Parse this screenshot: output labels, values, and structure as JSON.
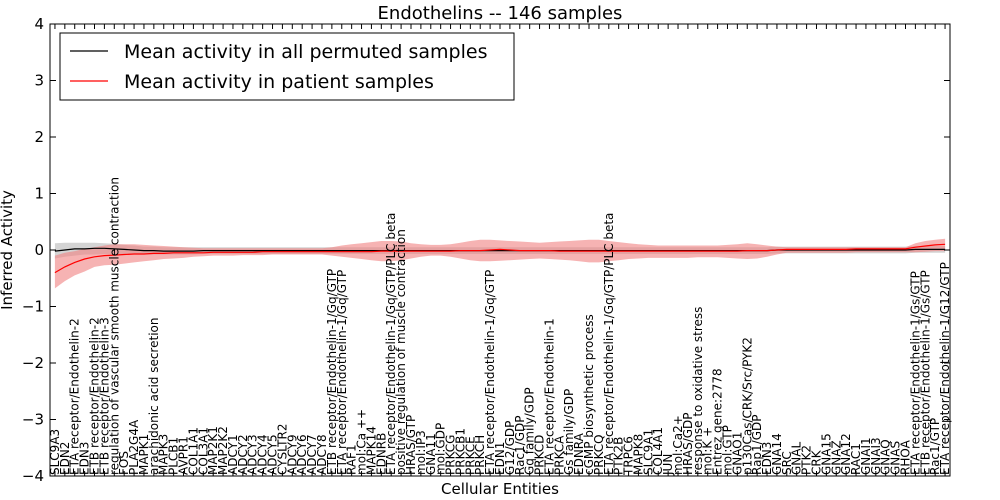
{
  "chart_data": {
    "type": "line",
    "title": "Endothelins -- 146 samples",
    "xlabel": "Cellular Entities",
    "ylabel": "Inferred Activity",
    "ylim": [
      -4,
      4
    ],
    "yticks": [
      -4,
      -3,
      -2,
      -1,
      0,
      1,
      2,
      3,
      4
    ],
    "grid": false,
    "legend_position": "top-left",
    "categories": [
      "SLC9A3",
      "EDN2",
      "ETA receptor/Endothelin-2",
      "EDN3",
      "ETB receptor/Endothelin-2",
      "ETB receptor/Endothelin-3",
      "regulation of vascular smooth muscle contraction",
      "FOS",
      "PLA2G4A",
      "MAPK1",
      "arachidonic acid secretion",
      "MAPK3",
      "PLCB1",
      "AVPR1",
      "COL1A1",
      "COL3A1",
      "MAP2K1",
      "MAP2K2",
      "ADCY1",
      "ADCY2",
      "ADCY3",
      "ADCY4",
      "ADCY5",
      "CYSLTR2",
      "ADCY9",
      "ADCY6",
      "ADCY7",
      "ADCY8",
      "ETB receptor/Endothelin-1/Gq/GTP",
      "ETA receptor/Endothelin-1/Gq/GTP",
      "RAF1",
      "mol:Ca ++",
      "MAPK14",
      "EDNRB",
      "ETA receptor/Endothelin-1/Gq/GTP/PLC beta",
      "positive regulation of muscle contraction",
      "HRAS/GTP",
      "mol:IP3",
      "GNA11",
      "mol:GDP",
      "PRKCG",
      "PRKCB1",
      "PRKCE",
      "PRKCH",
      "ETA receptor/Endothelin-1/Gq/GTP",
      "EDN1",
      "G12/GDP",
      "Rac1/GDP",
      "Gq family/GDP",
      "PRKCD",
      "ETA receptor/Endothelin-1",
      "PRKCA",
      "Gs family/GDP",
      "EDNRA",
      "cGMP biosynthetic process",
      "PRKCQ",
      "ETA receptor/Endothelin-1/Gq/GTP/PLC beta",
      "PTK2B",
      "TRPC6",
      "MAPK8",
      "SLC9A1",
      "COL4A1",
      "JUN",
      "mol:Ca2+",
      "HRAS/GDP",
      "response to oxidative stress",
      "mol:K +",
      "Entrez gene:2778",
      "mol:GTP",
      "GNAO1",
      "p130Cas/CRK/Src/PYK2",
      "Rap1/GDP",
      "EDN3",
      "GNA14",
      "SRC",
      "GNAL",
      "PTK2",
      "CRK",
      "GNA15",
      "GNAZ",
      "GNA12",
      "RAC1",
      "GNAI1",
      "GNAI3",
      "GNAQ",
      "GNAS",
      "RHOA",
      "ETA receptor/Endothelin-1/Gs/GTP",
      "ETB receptor/Endothelin-1/Gs/GTP",
      "Rac1/GTP",
      "ETA receptor/Endothelin-1/G12/GTP"
    ],
    "series": [
      {
        "name": "Mean activity in all permuted samples",
        "color": "#000000",
        "values": [
          -0.02,
          0.0,
          0.02,
          0.02,
          0.03,
          0.03,
          0.02,
          0.01,
          0.0,
          -0.01,
          -0.01,
          -0.02,
          -0.02,
          -0.02,
          -0.02,
          -0.01,
          -0.01,
          -0.01,
          -0.01,
          -0.01,
          -0.01,
          -0.01,
          -0.01,
          -0.01,
          -0.01,
          -0.01,
          -0.01,
          -0.01,
          -0.01,
          -0.01,
          -0.01,
          -0.01,
          -0.01,
          -0.01,
          -0.01,
          -0.01,
          -0.01,
          -0.01,
          -0.01,
          -0.01,
          -0.01,
          -0.01,
          -0.01,
          -0.01,
          -0.01,
          -0.01,
          -0.01,
          -0.01,
          -0.01,
          -0.01,
          -0.01,
          -0.01,
          -0.01,
          -0.01,
          -0.01,
          -0.01,
          -0.01,
          -0.01,
          -0.01,
          -0.01,
          -0.01,
          -0.01,
          -0.01,
          -0.01,
          -0.01,
          -0.01,
          -0.01,
          -0.01,
          -0.01,
          -0.01,
          -0.01,
          -0.01,
          -0.01,
          0.0,
          0.0,
          0.0,
          0.0,
          0.0,
          0.0,
          0.0,
          0.0,
          0.0,
          0.0,
          0.0,
          0.0,
          0.0,
          0.0,
          0.01,
          0.01,
          0.01,
          0.01
        ],
        "band_lower": [
          -0.15,
          -0.12,
          -0.1,
          -0.08,
          -0.08,
          -0.07,
          -0.07,
          -0.07,
          -0.08,
          -0.08,
          -0.08,
          -0.08,
          -0.08,
          -0.08,
          -0.08,
          -0.07,
          -0.07,
          -0.07,
          -0.07,
          -0.07,
          -0.07,
          -0.07,
          -0.07,
          -0.07,
          -0.07,
          -0.07,
          -0.07,
          -0.07,
          -0.07,
          -0.07,
          -0.07,
          -0.07,
          -0.07,
          -0.07,
          -0.07,
          -0.07,
          -0.07,
          -0.07,
          -0.07,
          -0.07,
          -0.07,
          -0.07,
          -0.07,
          -0.07,
          -0.07,
          -0.07,
          -0.07,
          -0.07,
          -0.07,
          -0.07,
          -0.07,
          -0.07,
          -0.07,
          -0.07,
          -0.07,
          -0.07,
          -0.07,
          -0.07,
          -0.07,
          -0.07,
          -0.07,
          -0.07,
          -0.07,
          -0.07,
          -0.07,
          -0.07,
          -0.07,
          -0.07,
          -0.07,
          -0.07,
          -0.07,
          -0.07,
          -0.07,
          -0.06,
          -0.06,
          -0.06,
          -0.06,
          -0.06,
          -0.06,
          -0.06,
          -0.06,
          -0.06,
          -0.06,
          -0.06,
          -0.06,
          -0.06,
          -0.06,
          -0.05,
          -0.05,
          -0.05,
          -0.05
        ],
        "band_upper": [
          0.12,
          0.13,
          0.13,
          0.13,
          0.13,
          0.12,
          0.11,
          0.09,
          0.08,
          0.06,
          0.06,
          0.05,
          0.05,
          0.05,
          0.05,
          0.05,
          0.05,
          0.05,
          0.05,
          0.05,
          0.05,
          0.05,
          0.05,
          0.05,
          0.05,
          0.05,
          0.05,
          0.05,
          0.05,
          0.05,
          0.05,
          0.05,
          0.05,
          0.05,
          0.05,
          0.05,
          0.05,
          0.05,
          0.05,
          0.05,
          0.05,
          0.05,
          0.05,
          0.05,
          0.05,
          0.05,
          0.05,
          0.05,
          0.05,
          0.05,
          0.05,
          0.05,
          0.05,
          0.05,
          0.05,
          0.05,
          0.05,
          0.05,
          0.05,
          0.05,
          0.05,
          0.05,
          0.05,
          0.05,
          0.05,
          0.05,
          0.05,
          0.05,
          0.05,
          0.05,
          0.05,
          0.05,
          0.05,
          0.06,
          0.06,
          0.06,
          0.06,
          0.06,
          0.06,
          0.06,
          0.06,
          0.06,
          0.06,
          0.06,
          0.06,
          0.06,
          0.06,
          0.07,
          0.07,
          0.07,
          0.07
        ]
      },
      {
        "name": "Mean activity in patient samples",
        "color": "#ff0000",
        "values": [
          -0.4,
          -0.3,
          -0.22,
          -0.16,
          -0.12,
          -0.1,
          -0.09,
          -0.08,
          -0.07,
          -0.07,
          -0.06,
          -0.06,
          -0.05,
          -0.05,
          -0.05,
          -0.05,
          -0.04,
          -0.04,
          -0.04,
          -0.04,
          -0.04,
          -0.03,
          -0.03,
          -0.03,
          -0.03,
          -0.03,
          -0.03,
          -0.03,
          -0.03,
          -0.03,
          -0.03,
          -0.03,
          -0.03,
          -0.02,
          -0.02,
          -0.02,
          -0.02,
          -0.02,
          -0.02,
          -0.02,
          -0.02,
          -0.01,
          -0.01,
          -0.01,
          0.0,
          0.01,
          0.0,
          -0.01,
          -0.01,
          -0.01,
          -0.01,
          -0.02,
          -0.02,
          -0.02,
          -0.02,
          -0.02,
          -0.02,
          -0.02,
          -0.02,
          -0.02,
          -0.02,
          -0.02,
          -0.02,
          -0.02,
          -0.02,
          -0.02,
          -0.02,
          -0.02,
          -0.02,
          -0.02,
          -0.01,
          -0.01,
          -0.01,
          0.0,
          0.01,
          0.01,
          0.01,
          0.01,
          0.01,
          0.01,
          0.01,
          0.02,
          0.02,
          0.02,
          0.02,
          0.02,
          0.02,
          0.05,
          0.07,
          0.09,
          0.1
        ],
        "band_lower": [
          -0.68,
          -0.55,
          -0.45,
          -0.38,
          -0.3,
          -0.27,
          -0.26,
          -0.24,
          -0.22,
          -0.2,
          -0.18,
          -0.16,
          -0.15,
          -0.14,
          -0.12,
          -0.11,
          -0.1,
          -0.1,
          -0.1,
          -0.09,
          -0.09,
          -0.09,
          -0.08,
          -0.08,
          -0.08,
          -0.08,
          -0.08,
          -0.08,
          -0.1,
          -0.12,
          -0.14,
          -0.16,
          -0.18,
          -0.2,
          -0.2,
          -0.18,
          -0.15,
          -0.12,
          -0.1,
          -0.1,
          -0.12,
          -0.15,
          -0.18,
          -0.2,
          -0.2,
          -0.19,
          -0.18,
          -0.17,
          -0.16,
          -0.15,
          -0.16,
          -0.17,
          -0.18,
          -0.2,
          -0.22,
          -0.22,
          -0.2,
          -0.18,
          -0.16,
          -0.15,
          -0.14,
          -0.14,
          -0.14,
          -0.14,
          -0.14,
          -0.13,
          -0.13,
          -0.13,
          -0.14,
          -0.15,
          -0.16,
          -0.15,
          -0.12,
          -0.08,
          -0.05,
          -0.05,
          -0.05,
          -0.05,
          -0.05,
          -0.05,
          -0.05,
          -0.04,
          -0.04,
          -0.04,
          -0.04,
          -0.04,
          -0.04,
          -0.04,
          -0.03,
          -0.02,
          -0.02
        ],
        "band_upper": [
          -0.1,
          -0.05,
          -0.02,
          0.02,
          0.05,
          0.08,
          0.1,
          0.1,
          0.1,
          0.09,
          0.08,
          0.07,
          0.06,
          0.05,
          0.04,
          0.03,
          0.03,
          0.03,
          0.03,
          0.03,
          0.03,
          0.03,
          0.03,
          0.03,
          0.03,
          0.03,
          0.03,
          0.03,
          0.05,
          0.08,
          0.1,
          0.12,
          0.14,
          0.16,
          0.16,
          0.15,
          0.12,
          0.1,
          0.09,
          0.09,
          0.1,
          0.13,
          0.16,
          0.18,
          0.18,
          0.17,
          0.16,
          0.15,
          0.14,
          0.13,
          0.14,
          0.15,
          0.16,
          0.17,
          0.18,
          0.18,
          0.16,
          0.14,
          0.12,
          0.1,
          0.09,
          0.08,
          0.08,
          0.08,
          0.08,
          0.08,
          0.08,
          0.08,
          0.09,
          0.1,
          0.12,
          0.1,
          0.08,
          0.06,
          0.05,
          0.05,
          0.05,
          0.05,
          0.05,
          0.05,
          0.05,
          0.05,
          0.05,
          0.05,
          0.05,
          0.05,
          0.05,
          0.12,
          0.16,
          0.18,
          0.2
        ]
      }
    ]
  }
}
